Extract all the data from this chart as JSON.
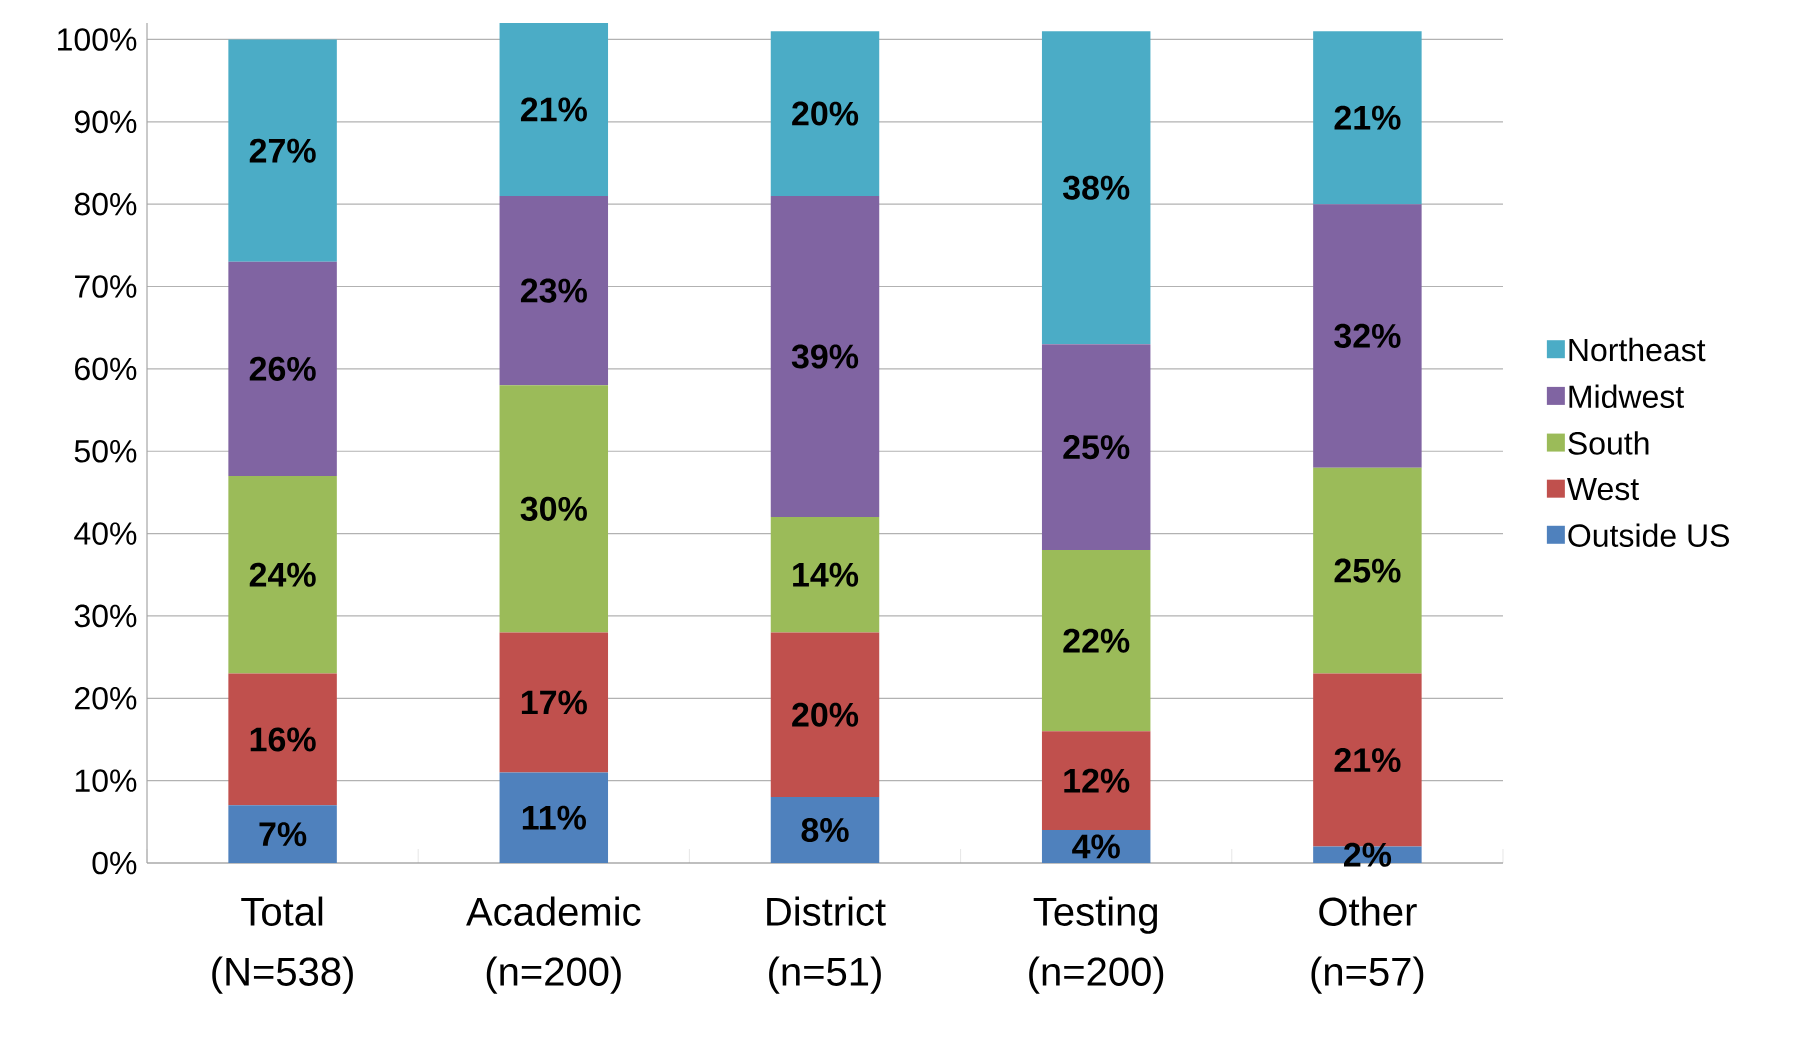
{
  "chart_data": {
    "type": "bar",
    "stacked": true,
    "categories": [
      "Total (N=538)",
      "Academic (n=200)",
      "District (n=51)",
      "Testing (n=200)",
      "Other (n=57)"
    ],
    "series": [
      {
        "name": "Outside  US",
        "color": "#4f81bd",
        "values": [
          7,
          11,
          8,
          4,
          2
        ],
        "value_labels": [
          "7%",
          "11%",
          "8%",
          "4%",
          "2%"
        ]
      },
      {
        "name": "West",
        "color": "#c0504d",
        "values": [
          16,
          17,
          20,
          12,
          21
        ],
        "value_labels": [
          "16%",
          "17%",
          "20%",
          "12%",
          "21%"
        ]
      },
      {
        "name": "South",
        "color": "#9bbb59",
        "values": [
          24,
          30,
          14,
          22,
          25
        ],
        "value_labels": [
          "24%",
          "30%",
          "14%",
          "22%",
          "25%"
        ]
      },
      {
        "name": "Midwest",
        "color": "#8064a2",
        "values": [
          26,
          23,
          39,
          25,
          32
        ],
        "value_labels": [
          "26%",
          "23%",
          "39%",
          "25%",
          "32%"
        ]
      },
      {
        "name": "Northeast",
        "color": "#4bacc6",
        "values": [
          27,
          21,
          20,
          38,
          21
        ],
        "value_labels": [
          "27%",
          "21%",
          "20%",
          "38%",
          "21%"
        ]
      }
    ],
    "ylim": [
      0,
      102
    ],
    "yticks": [
      {
        "value": 0,
        "label": "0%"
      },
      {
        "value": 10,
        "label": "10%"
      },
      {
        "value": 20,
        "label": "20%"
      },
      {
        "value": 30,
        "label": "30%"
      },
      {
        "value": 40,
        "label": "40%"
      },
      {
        "value": 50,
        "label": "50%"
      },
      {
        "value": 60,
        "label": "60%"
      },
      {
        "value": 70,
        "label": "70%"
      },
      {
        "value": 80,
        "label": "80%"
      },
      {
        "value": 90,
        "label": "90%"
      },
      {
        "value": 100,
        "label": "100%"
      }
    ],
    "grid": "y",
    "legend": "right"
  }
}
